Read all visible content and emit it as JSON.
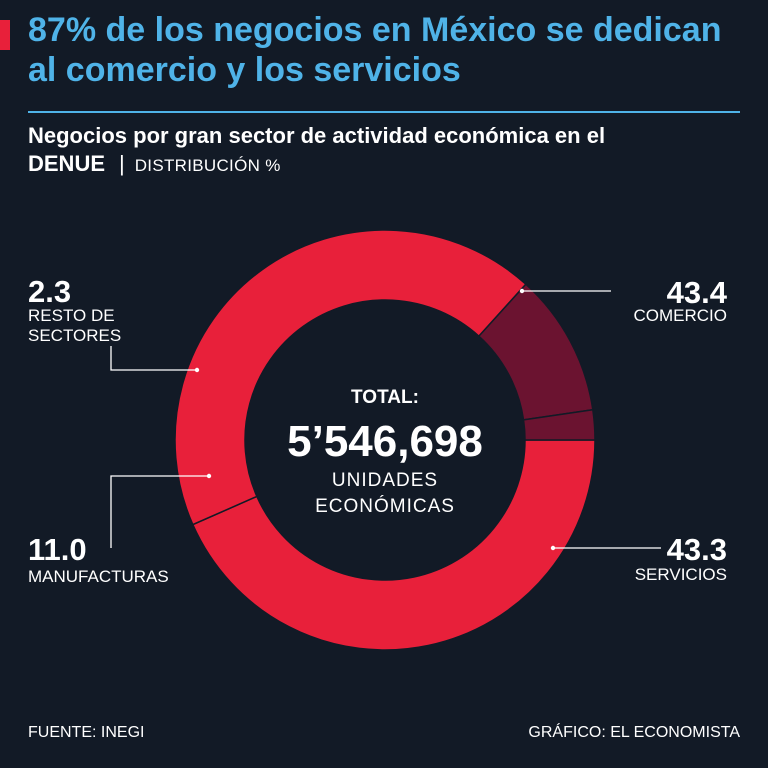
{
  "header": {
    "title": "87% de los negocios en México se dedican al comercio y los servicios",
    "subtitle_main": "Negocios por gran sector de actividad económica en el ",
    "subtitle_bold": "DENUE",
    "subtitle_sep": "|",
    "subtitle_unit": "DISTRIBUCIÓN %"
  },
  "colors": {
    "accent_red": "#e8203a",
    "dark_red": "#6b1330",
    "title_blue": "#4fb3e8",
    "background": "#121a26"
  },
  "chart_data": {
    "type": "pie",
    "variant": "donut",
    "unit": "%",
    "slices": [
      {
        "label": "COMERCIO",
        "value": 43.4,
        "value_text": "43.4",
        "color": "#e8203a"
      },
      {
        "label": "SERVICIOS",
        "value": 43.3,
        "value_text": "43.3",
        "color": "#e8203a"
      },
      {
        "label": "MANUFACTURAS",
        "value": 11.0,
        "value_text": "11.0",
        "color": "#6b1330"
      },
      {
        "label": "RESTO DE SECTORES",
        "label_lines": [
          "RESTO DE",
          "SECTORES"
        ],
        "value": 2.3,
        "value_text": "2.3",
        "color": "#6b1330"
      }
    ],
    "center": {
      "label": "TOTAL:",
      "value": "5’546,698",
      "unit_lines": [
        "UNIDADES",
        "ECONÓMICAS"
      ]
    }
  },
  "footer": {
    "source": "FUENTE: INEGI",
    "credit": "GRÁFICO: EL ECONOMISTA"
  }
}
